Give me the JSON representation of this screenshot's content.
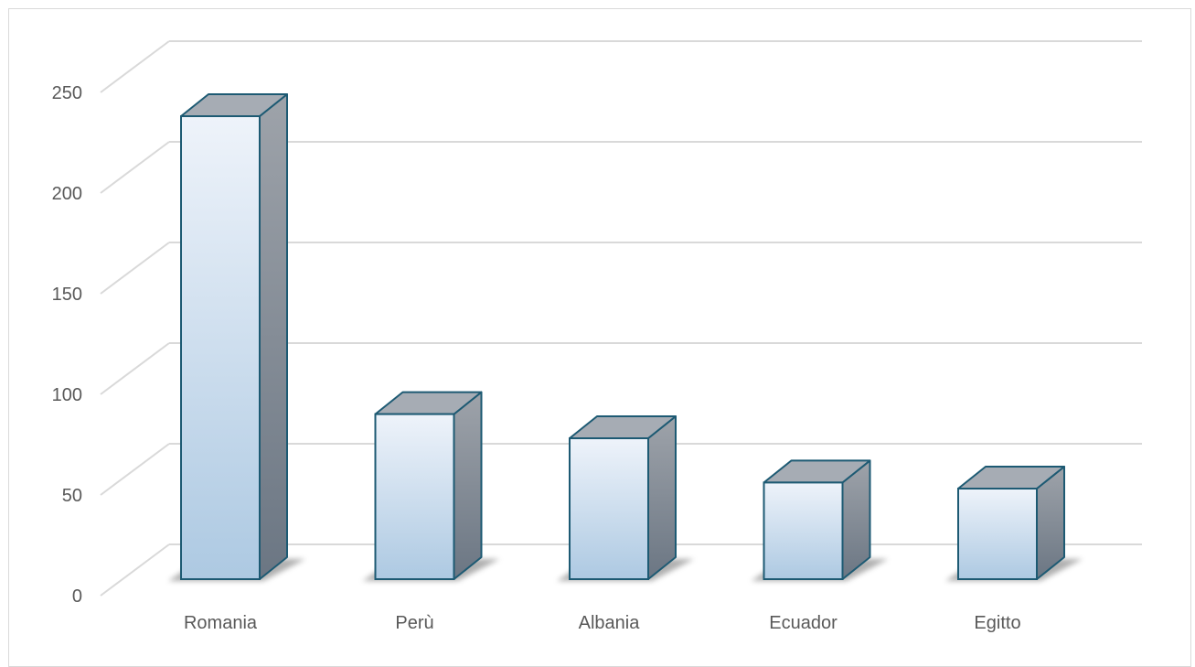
{
  "chart_data": {
    "type": "bar",
    "style": "3d-column",
    "title": "",
    "xlabel": "",
    "ylabel": "",
    "categories": [
      "Romania",
      "Perù",
      "Albania",
      "Ecuador",
      "Egitto"
    ],
    "values": [
      230,
      82,
      70,
      48,
      45
    ],
    "ylim": [
      0,
      250
    ],
    "yticks": [
      "0",
      "50",
      "100",
      "150",
      "200",
      "250"
    ],
    "grid": true,
    "legend": "none",
    "colors": {
      "bar_front_top": "#eef3fa",
      "bar_front_bottom": "#adc9e2",
      "bar_top_face": "#a6acb4",
      "bar_side_top": "#9ea3aa",
      "bar_side_bottom": "#6b7683",
      "bar_outline": "#1d5a73",
      "gridline": "#d9d9d9",
      "tick_text": "#595959",
      "shadow": "#6e6e6e"
    }
  }
}
